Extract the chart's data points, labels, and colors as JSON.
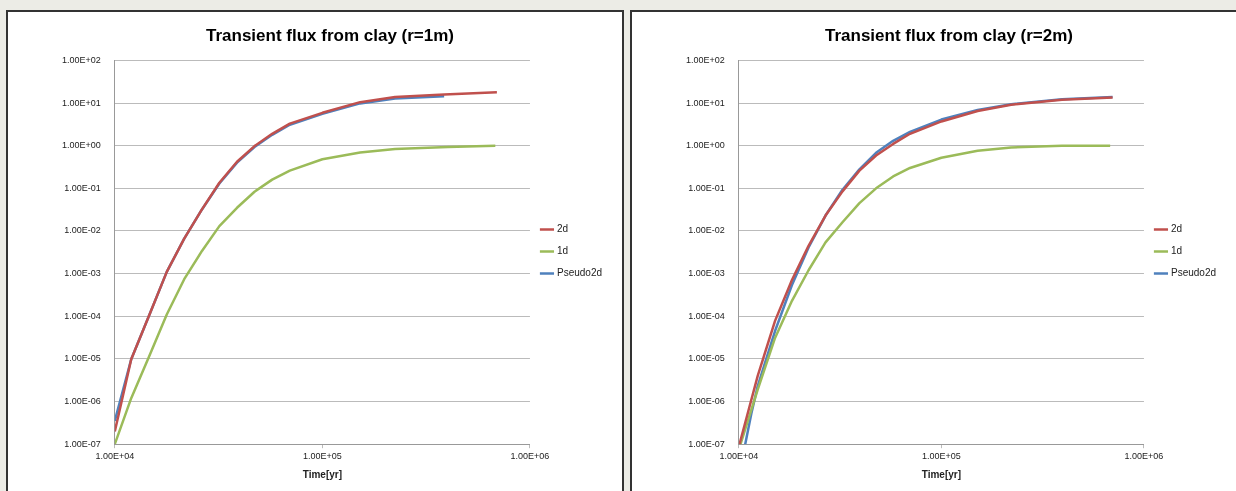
{
  "chart_data": [
    {
      "type": "line",
      "title": "Transient flux from clay (r=1m)",
      "xlabel": "Time[yr]",
      "log": "xy",
      "grid": "y",
      "legend": "right",
      "marker": "none",
      "line_style": "solid",
      "xlim": [
        10000,
        1000000
      ],
      "xticks": [
        {
          "value": 10000,
          "label": "1.00E+04"
        },
        {
          "value": 100000,
          "label": "1.00E+05"
        },
        {
          "value": 1000000,
          "label": "1.00E+06"
        }
      ],
      "ylim": [
        1e-07,
        100
      ],
      "yticks": [
        {
          "value": 1e-07,
          "label": "1.00E-07"
        },
        {
          "value": 1e-06,
          "label": "1.00E-06"
        },
        {
          "value": 1e-05,
          "label": "1.00E-05"
        },
        {
          "value": 0.0001,
          "label": "1.00E-04"
        },
        {
          "value": 0.001,
          "label": "1.00E-03"
        },
        {
          "value": 0.01,
          "label": "1.00E-02"
        },
        {
          "value": 0.1,
          "label": "1.00E-01"
        },
        {
          "value": 1,
          "label": "1.00E+00"
        },
        {
          "value": 10,
          "label": "1.00E+01"
        },
        {
          "value": 100,
          "label": "1.00E+02"
        }
      ],
      "series": [
        {
          "name": "2d",
          "color": "#c0504d",
          "x": [
            10000,
            12000,
            14700,
            17800,
            21600,
            26300,
            31900,
            38800,
            47100,
            57300,
            69700,
            100000,
            152000,
            224000,
            386000,
            693000
          ],
          "values": [
            2e-07,
            9.8e-06,
            0.00011,
            0.0011,
            0.0066,
            0.032,
            0.135,
            0.42,
            0.98,
            1.9,
            3.3,
            5.9,
            10.5,
            13.8,
            15.8,
            17.8
          ]
        },
        {
          "name": "1d",
          "color": "#9bbb59",
          "x": [
            10000,
            12000,
            14700,
            17800,
            21600,
            26300,
            31900,
            38800,
            47100,
            57300,
            69700,
            100000,
            152000,
            224000,
            402000,
            681000
          ],
          "values": [
            1e-07,
            1.2e-06,
            1.2e-05,
            0.00011,
            0.00074,
            0.0034,
            0.013,
            0.035,
            0.083,
            0.16,
            0.26,
            0.48,
            0.69,
            0.84,
            0.93,
            1.0
          ]
        },
        {
          "name": "Pseudo2d",
          "color": "#4f81bd",
          "x": [
            10000,
            12000,
            14700,
            17800,
            21600,
            26300,
            31900,
            38800,
            47100,
            57300,
            69700,
            100000,
            152000,
            224000,
            386000
          ],
          "values": [
            3.5e-07,
            9.8e-06,
            0.00011,
            0.0011,
            0.0066,
            0.032,
            0.13,
            0.4,
            0.93,
            1.8,
            3.1,
            5.6,
            9.8,
            12.8,
            14.5
          ]
        }
      ]
    },
    {
      "type": "line",
      "title": "Transient flux from clay (r=2m)",
      "xlabel": "Time[yr]",
      "log": "xy",
      "grid": "y",
      "legend": "right",
      "marker": "none",
      "line_style": "solid",
      "xlim": [
        10000,
        1000000
      ],
      "xticks": [
        {
          "value": 10000,
          "label": "1.00E+04"
        },
        {
          "value": 100000,
          "label": "1.00E+05"
        },
        {
          "value": 1000000,
          "label": "1.00E+06"
        }
      ],
      "ylim": [
        1e-07,
        100
      ],
      "yticks": [
        {
          "value": 1e-07,
          "label": "1.00E-07"
        },
        {
          "value": 1e-06,
          "label": "1.00E-06"
        },
        {
          "value": 1e-05,
          "label": "1.00E-05"
        },
        {
          "value": 0.0001,
          "label": "1.00E-04"
        },
        {
          "value": 0.001,
          "label": "1.00E-03"
        },
        {
          "value": 0.01,
          "label": "1.00E-02"
        },
        {
          "value": 0.1,
          "label": "1.00E-01"
        },
        {
          "value": 1,
          "label": "1.00E+00"
        },
        {
          "value": 10,
          "label": "1.00E+01"
        },
        {
          "value": 100,
          "label": "1.00E+02"
        }
      ],
      "series": [
        {
          "name": "2d",
          "color": "#c0504d",
          "x": [
            10080,
            12400,
            15100,
            18300,
            22100,
            26800,
            32500,
            39400,
            47600,
            57800,
            70000,
            100000,
            151000,
            221000,
            394000,
            700000
          ],
          "values": [
            1e-07,
            4e-06,
            7.8e-05,
            0.00071,
            0.0045,
            0.023,
            0.085,
            0.26,
            0.59,
            1.1,
            1.9,
            3.7,
            6.5,
            9.1,
            12,
            13.5
          ]
        },
        {
          "name": "1d",
          "color": "#9bbb59",
          "x": [
            10200,
            12400,
            15100,
            18300,
            22100,
            26800,
            32500,
            39400,
            47600,
            57800,
            70000,
            100000,
            151000,
            221000,
            394000,
            681000
          ],
          "values": [
            1e-07,
            1.9e-06,
            3.1e-05,
            0.00023,
            0.0012,
            0.0054,
            0.016,
            0.045,
            0.1,
            0.19,
            0.3,
            0.52,
            0.76,
            0.91,
            1.0,
            1.0
          ]
        },
        {
          "name": "Pseudo2d",
          "color": "#4f81bd",
          "x": [
            10760,
            11530,
            12400,
            15100,
            18300,
            22100,
            26800,
            32500,
            39400,
            47600,
            57800,
            70000,
            100000,
            151000,
            221000,
            394000,
            700000
          ],
          "values": [
            1e-07,
            5.2e-07,
            2.3e-06,
            4.5e-05,
            0.00054,
            0.0041,
            0.023,
            0.093,
            0.28,
            0.68,
            1.3,
            2.1,
            4.1,
            6.9,
            9.4,
            12.2,
            13.8
          ]
        }
      ]
    }
  ]
}
